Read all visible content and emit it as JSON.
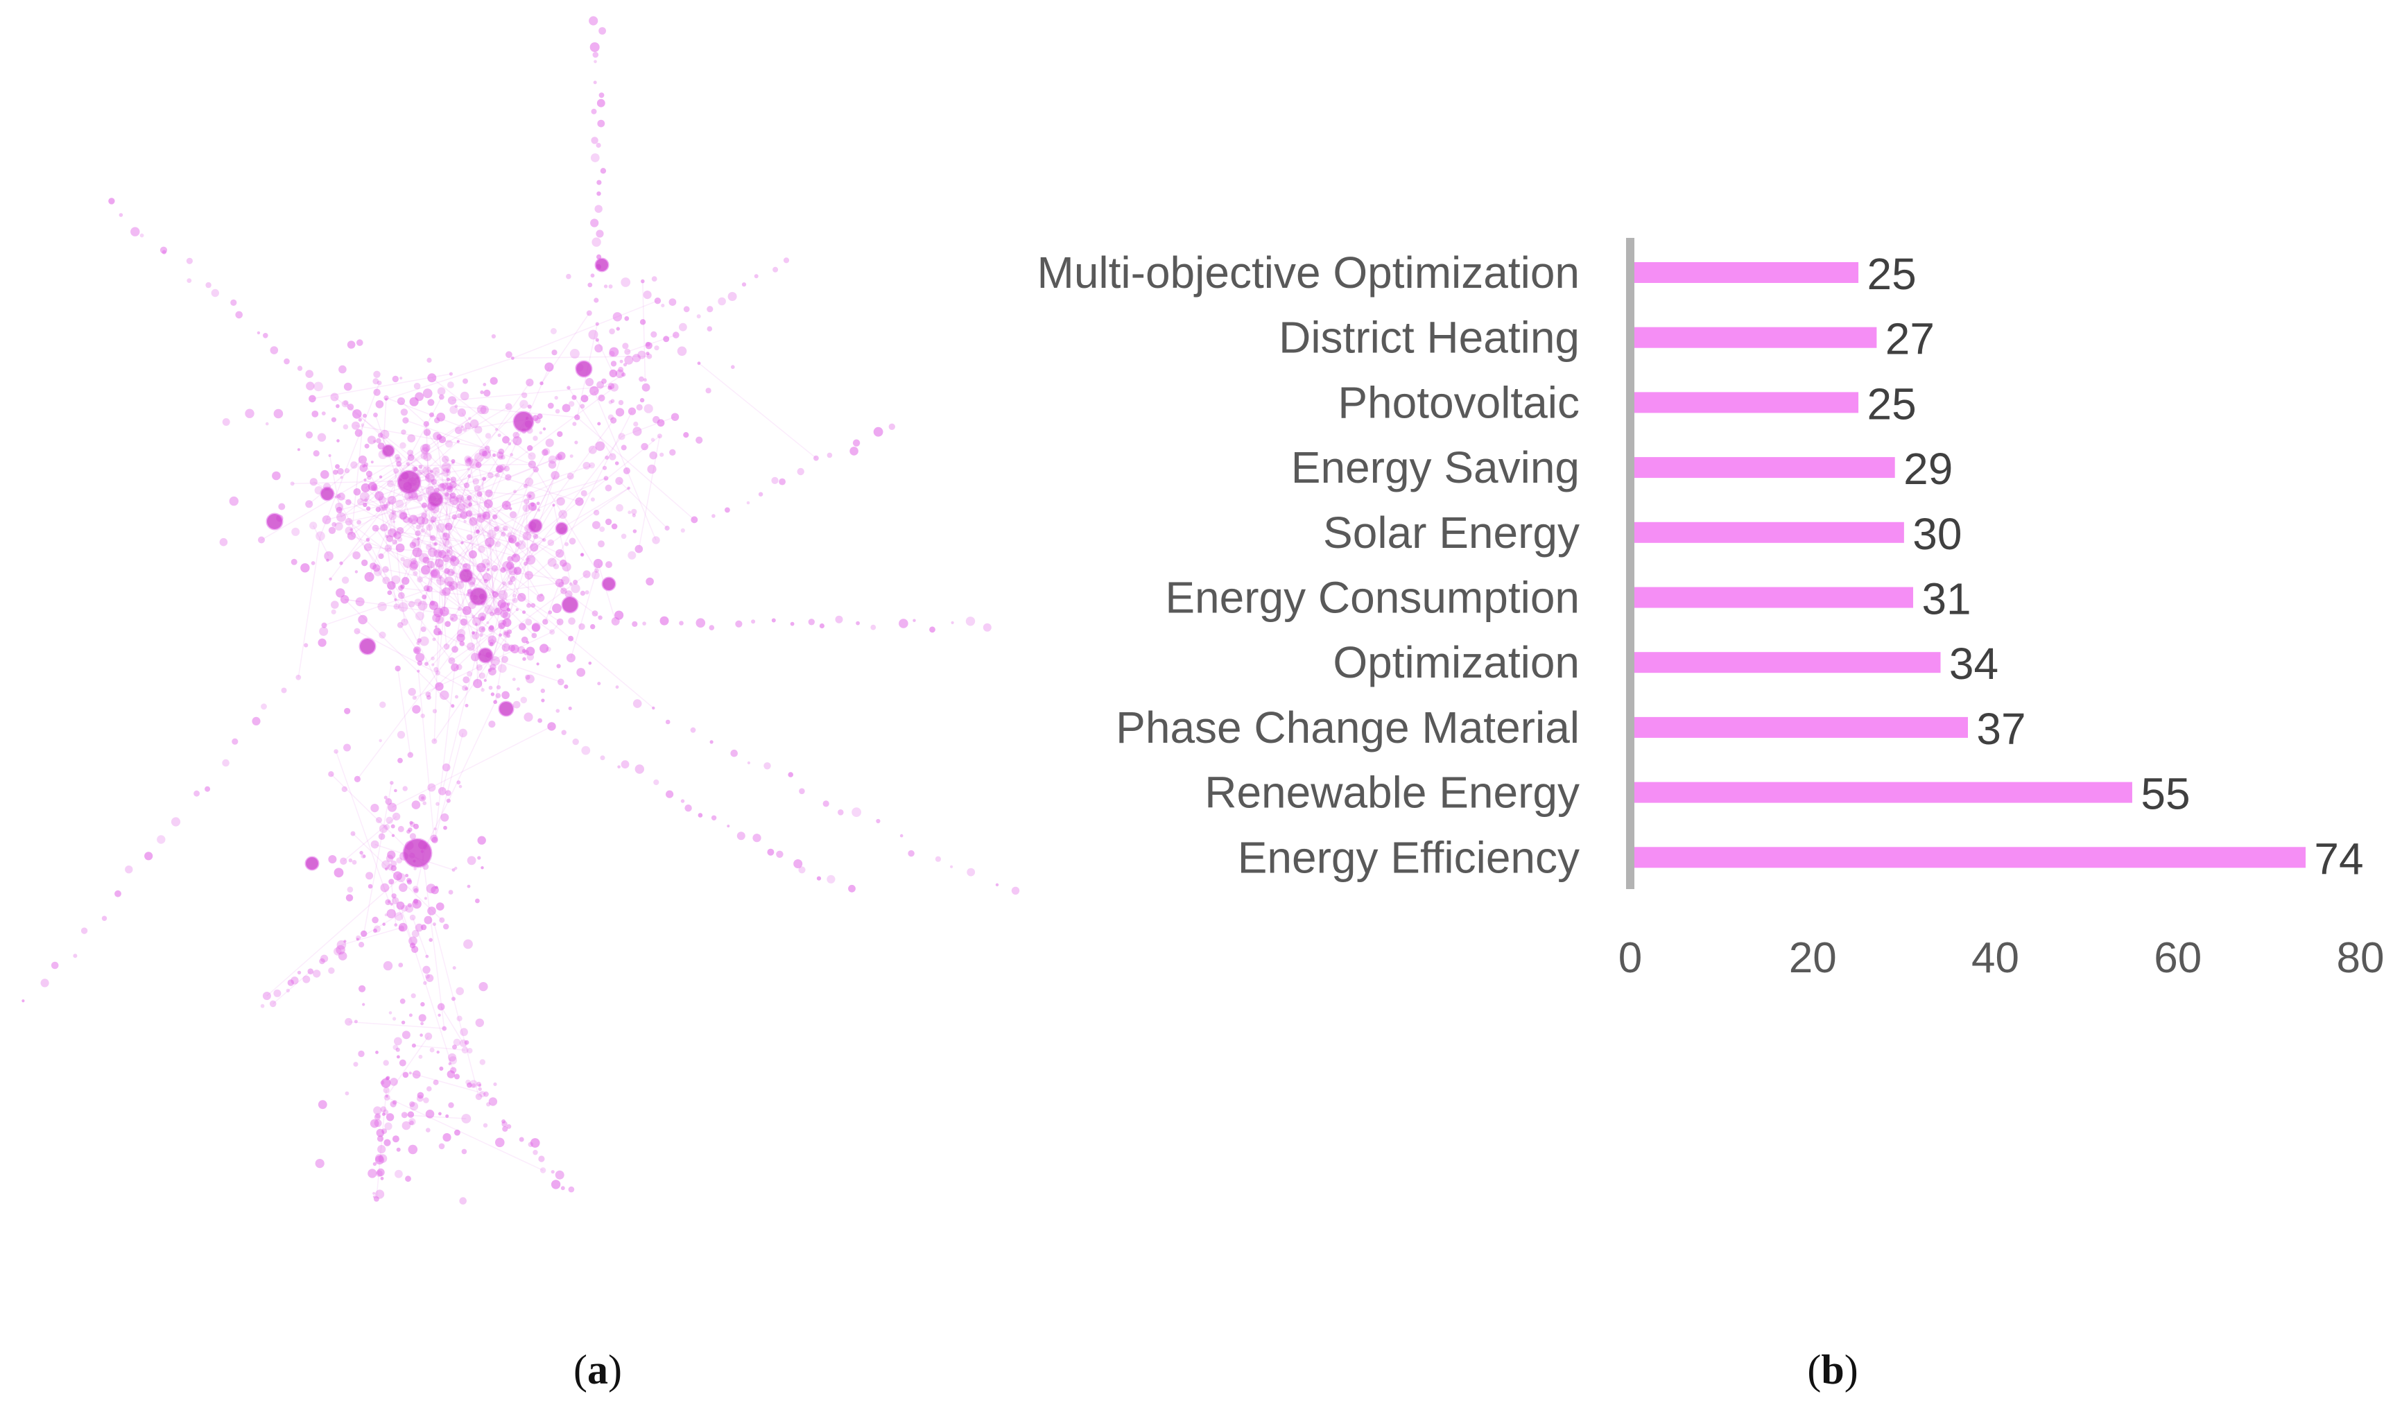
{
  "figure": {
    "panel_a": {
      "open": "(",
      "letter": "a",
      "close": ")"
    },
    "panel_b": {
      "open": "(",
      "letter": "b",
      "close": ")"
    }
  },
  "colors": {
    "node": "#e066e6",
    "node_dark": "#c93cc9",
    "bar": "#f58ef5",
    "axis": "#b3b3b3"
  },
  "chart_data": [
    {
      "type": "network",
      "title": "",
      "description_text": ""
    },
    {
      "type": "bar",
      "orientation": "horizontal",
      "categories": [
        "Multi-objective Optimization",
        "District Heating",
        "Photovoltaic",
        "Energy Saving",
        "Solar Energy",
        "Energy Consumption",
        "Optimization",
        "Phase Change Material",
        "Renewable Energy",
        "Energy Efficiency"
      ],
      "values": [
        25,
        27,
        25,
        29,
        30,
        31,
        34,
        37,
        55,
        74
      ],
      "xlim": [
        0,
        80
      ],
      "xticks": [
        0,
        20,
        40,
        60,
        80
      ],
      "title": "",
      "xlabel": "",
      "ylabel": "",
      "grid": false,
      "legend": "none"
    }
  ]
}
